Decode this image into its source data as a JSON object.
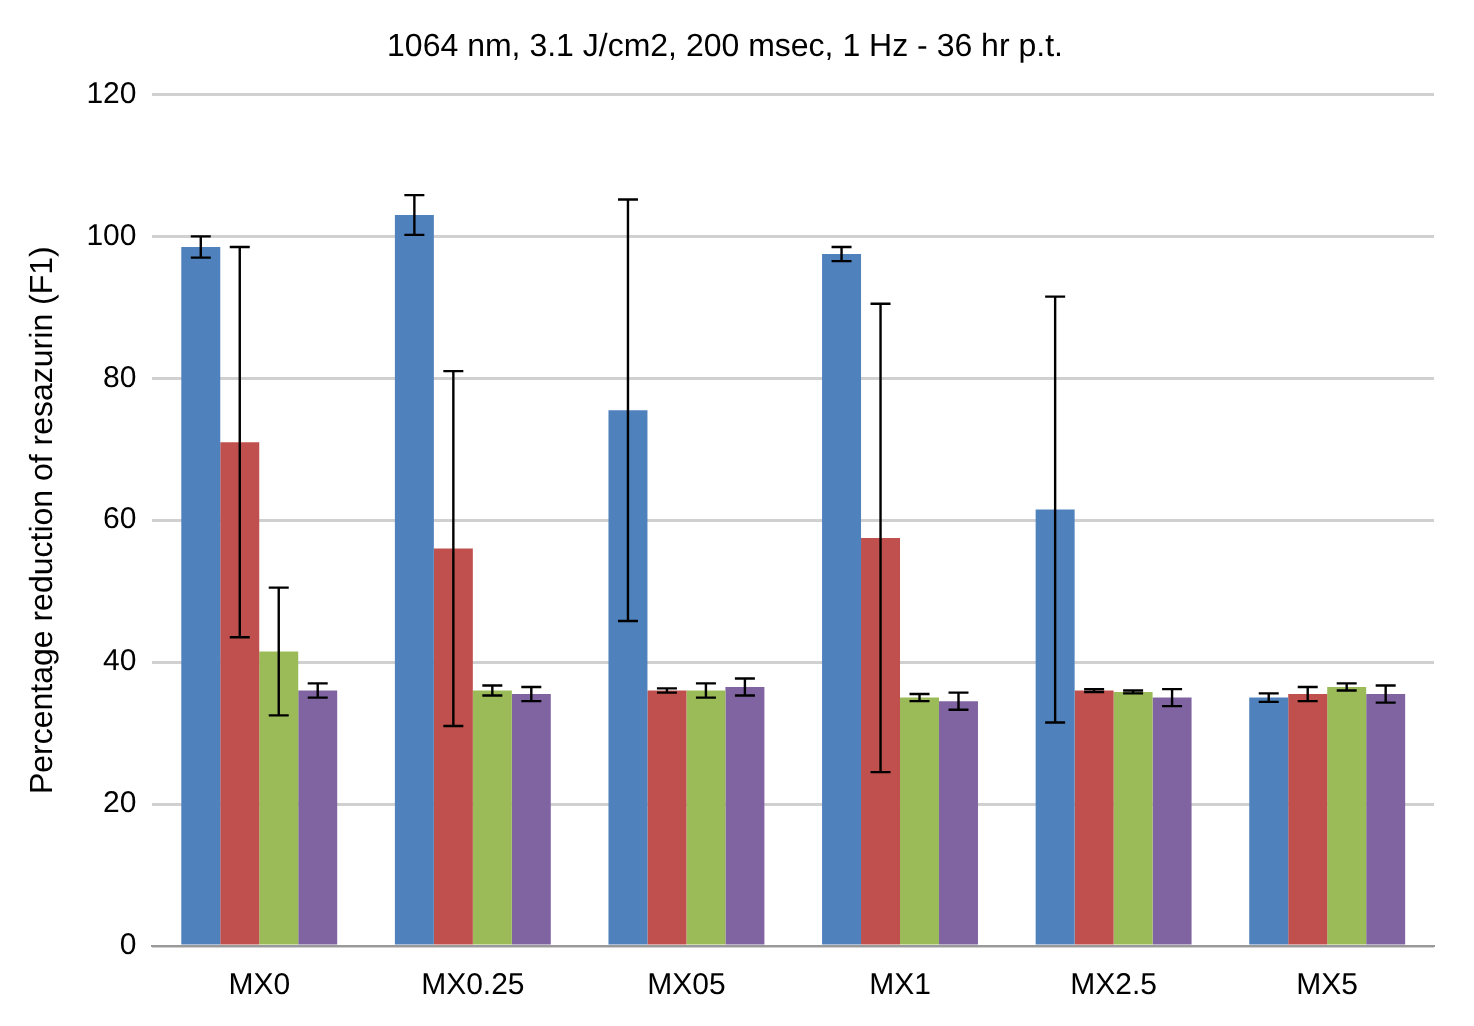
{
  "chart_data": {
    "type": "bar",
    "title": "1064 nm, 3.1 J/cm2, 200 msec, 1 Hz - 36 hr p.t.",
    "ylabel": "Percentage reduction of resazurin (F1)",
    "categories": [
      "MX0",
      "MX0.25",
      "MX05",
      "MX1",
      "MX2.5",
      "MX5"
    ],
    "series": [
      {
        "color": "#4f81bd",
        "values": [
          98.5,
          103,
          75.5,
          97.5,
          61.5,
          35
        ],
        "errors": [
          1.5,
          2.8,
          29.7,
          1,
          30,
          0.6
        ]
      },
      {
        "color": "#c0504d",
        "values": [
          71,
          56,
          36,
          57.5,
          36,
          35.5
        ],
        "errors": [
          27.5,
          25,
          0.3,
          33,
          0.2,
          1
        ]
      },
      {
        "color": "#9bbb59",
        "values": [
          41.5,
          36,
          36,
          35,
          35.8,
          36.5
        ],
        "errors": [
          9,
          0.7,
          1,
          0.5,
          0.2,
          0.5
        ]
      },
      {
        "color": "#8064a2",
        "values": [
          36,
          35.5,
          36.5,
          34.5,
          35,
          35.5
        ],
        "errors": [
          1,
          1,
          1.2,
          1.2,
          1.2,
          1.2
        ]
      }
    ],
    "ylim": [
      0,
      120
    ],
    "yticks": [
      0,
      20,
      40,
      60,
      80,
      100,
      120
    ],
    "grid": "y",
    "legend": false
  }
}
